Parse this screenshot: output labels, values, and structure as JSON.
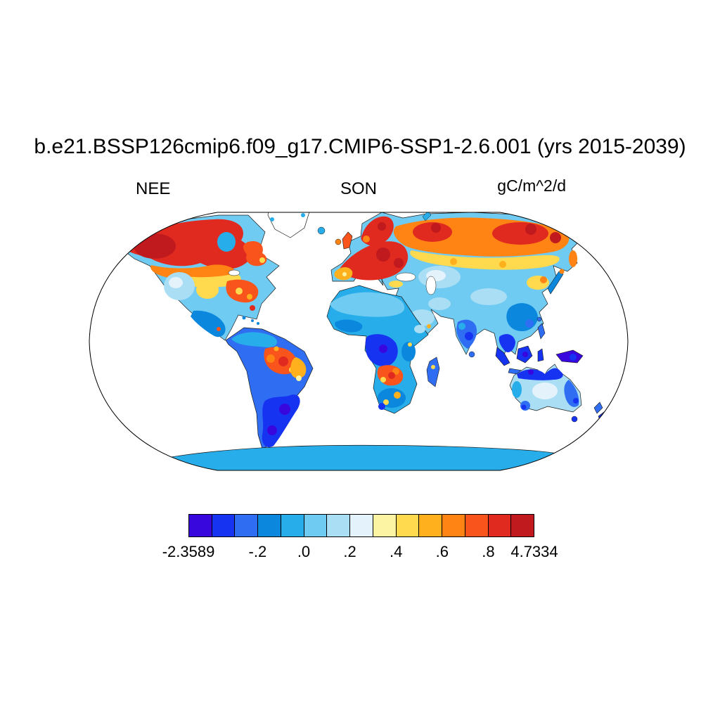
{
  "figure": {
    "title": "b.e21.BSSP126cmip6.f09_g17.CMIP6-SSP1-2.6.001 (yrs 2015-2039)",
    "variable_label": "NEE",
    "season_label": "SON",
    "units_label": "gC/m^2/d"
  },
  "chart_data": {
    "type": "heatmap",
    "title": "b.e21.BSSP126cmip6.f09_g17.CMIP6-SSP1-2.6.001 (yrs 2015-2039)",
    "variable": "NEE",
    "season": "SON",
    "units": "gC/m^2/d",
    "projection": "robinson",
    "grid": false,
    "legend_position": "bottom-colorbar",
    "colorbar": {
      "min": -2.3589,
      "max": 4.7334,
      "edges": [
        -2.3589,
        -0.4,
        -0.3,
        -0.2,
        -0.1,
        0.0,
        0.1,
        0.2,
        0.3,
        0.4,
        0.5,
        0.6,
        0.7,
        0.8,
        0.9,
        4.7334
      ],
      "colors": [
        "#3807dd",
        "#1633f2",
        "#2f6df3",
        "#0b87dd",
        "#27aeea",
        "#6fcbf2",
        "#aadef5",
        "#e4f3fb",
        "#fcf3a3",
        "#ffd94e",
        "#ffb01c",
        "#ff8413",
        "#f8541b",
        "#e02a1f",
        "#c01a1e"
      ],
      "tick_labels": [
        "-2.3589",
        "-.2",
        ".0",
        ".2",
        ".4",
        ".6",
        ".8",
        "4.7334"
      ],
      "tick_edge_indices": [
        0,
        3,
        5,
        7,
        9,
        11,
        13,
        15
      ]
    },
    "regions_qualitative": [
      {
        "region": "Boreal North America (Alaska-central Canada)",
        "nee_gC_m2_d": "strong source ~0.8 to 4.7"
      },
      {
        "region": "Eastern United States",
        "nee_gC_m2_d": "source ~0.3 to 0.8"
      },
      {
        "region": "Western United States",
        "nee_gC_m2_d": "near zero ~-0.1 to 0.1"
      },
      {
        "region": "Mexico and Central America",
        "nee_gC_m2_d": "sink ~-0.3 to -0.1"
      },
      {
        "region": "Central Brazil / Amazon arc",
        "nee_gC_m2_d": "patchy source ~0.3 to 4.7"
      },
      {
        "region": "Southern South America",
        "nee_gC_m2_d": "strong sink ~-2.4 to -0.3"
      },
      {
        "region": "Europe and Scandinavia",
        "nee_gC_m2_d": "strong source ~0.6 to 4.7"
      },
      {
        "region": "Boreal Russia / Siberia band",
        "nee_gC_m2_d": "source ~0.4 to 4.7"
      },
      {
        "region": "Central Asia",
        "nee_gC_m2_d": "near zero ~-0.1 to 0.1"
      },
      {
        "region": "Sahara and Arabia",
        "nee_gC_m2_d": "weak sink ~-0.2 to 0.0"
      },
      {
        "region": "Congo Basin",
        "nee_gC_m2_d": "sink ~-2.4 to -0.3"
      },
      {
        "region": "Southern Africa miombo belt",
        "nee_gC_m2_d": "patchy source ~0.2 to 0.8"
      },
      {
        "region": "India and Southeast Asia",
        "nee_gC_m2_d": "sink ~-0.4 to -0.2"
      },
      {
        "region": "Indonesia and New Guinea",
        "nee_gC_m2_d": "strong sink ~-2.4 to -0.4"
      },
      {
        "region": "Australia interior",
        "nee_gC_m2_d": "near zero ~-0.1 to 0.1"
      },
      {
        "region": "Australia northern/eastern coasts",
        "nee_gC_m2_d": "sink ~-0.4 to -0.2"
      },
      {
        "region": "Antarctica",
        "nee_gC_m2_d": "uniform ~-0.1 to 0.0"
      },
      {
        "region": "Greenland interior",
        "nee_gC_m2_d": "no data (white)"
      }
    ]
  }
}
